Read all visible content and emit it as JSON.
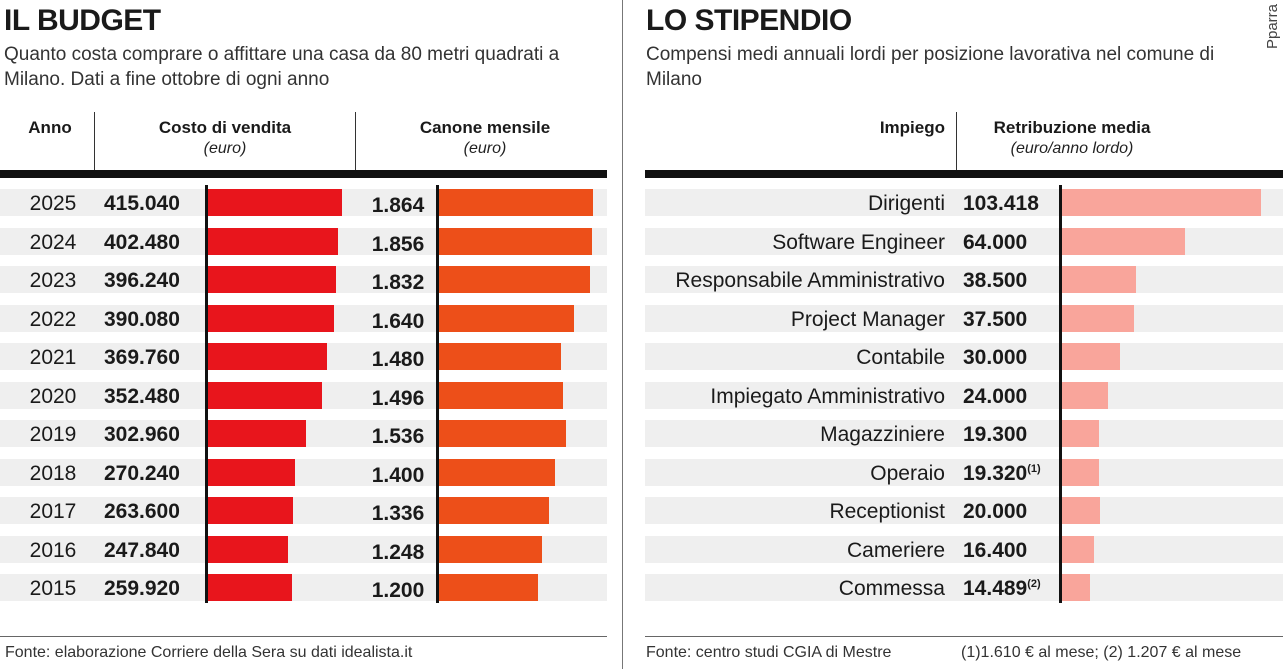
{
  "credit": "Pparra",
  "left": {
    "title": "IL BUDGET",
    "subtitle": "Quanto costa comprare o affittare una casa da 80 metri quadrati a Milano. Dati a fine ottobre di ogni anno",
    "col_anno": "Anno",
    "col_vendita": "Costo di vendita",
    "col_vendita_unit": "(euro)",
    "col_canone": "Canone mensile",
    "col_canone_unit": "(euro)",
    "source": "Fonte: elaborazione Corriere della Sera su dati idealista.it"
  },
  "right": {
    "title": "LO STIPENDIO",
    "subtitle": "Compensi medi annuali lordi per posizione lavorativa nel comune di Milano",
    "col_impiego": "Impiego",
    "col_retribuzione": "Retribuzione media",
    "col_retribuzione_unit": "(euro/anno lordo)",
    "source": "Fonte: centro studi CGIA di Mestre",
    "notes": "(1)1.610 € al mese; (2) 1.207 € al mese"
  },
  "colors": {
    "sale": "#e8151c",
    "rent": "#ed4f19",
    "salary": "#f9a59b",
    "stripe": "#efefef"
  },
  "chart_data": [
    {
      "type": "bar",
      "title": "IL BUDGET",
      "categories": [
        "2025",
        "2024",
        "2023",
        "2022",
        "2021",
        "2020",
        "2019",
        "2018",
        "2017",
        "2016",
        "2015"
      ],
      "series": [
        {
          "name": "Costo di vendita",
          "values": [
            415040,
            402480,
            396240,
            390080,
            369760,
            352480,
            302960,
            270240,
            263600,
            247840,
            259920
          ],
          "labels": [
            "415.040",
            "402.480",
            "396.240",
            "390.080",
            "369.760",
            "352.480",
            "302.960",
            "270.240",
            "263.600",
            "247.840",
            "259.920"
          ]
        },
        {
          "name": "Canone mensile",
          "values": [
            1864,
            1856,
            1832,
            1640,
            1480,
            1496,
            1536,
            1400,
            1336,
            1248,
            1200
          ],
          "labels": [
            "1.864",
            "1.856",
            "1.832",
            "1.640",
            "1.480",
            "1.496",
            "1.536",
            "1.400",
            "1.336",
            "1.248",
            "1.200"
          ]
        }
      ]
    },
    {
      "type": "bar",
      "title": "LO STIPENDIO",
      "categories": [
        "Dirigenti",
        "Software Engineer",
        "Responsabile Amministrativo",
        "Project Manager",
        "Contabile",
        "Impiegato Amministrativo",
        "Magazziniere",
        "Operaio",
        "Receptionist",
        "Cameriere",
        "Commessa"
      ],
      "series": [
        {
          "name": "Retribuzione media",
          "values": [
            103418,
            64000,
            38500,
            37500,
            30000,
            24000,
            19300,
            19320,
            20000,
            16400,
            14489
          ],
          "labels": [
            "103.418",
            "64.000",
            "38.500",
            "37.500",
            "30.000",
            "24.000",
            "19.300",
            "19.320",
            "20.000",
            "16.400",
            "14.489"
          ],
          "notes": [
            "",
            "",
            "",
            "",
            "",
            "",
            "",
            "(1)",
            "",
            "",
            "(2)"
          ]
        }
      ]
    }
  ]
}
